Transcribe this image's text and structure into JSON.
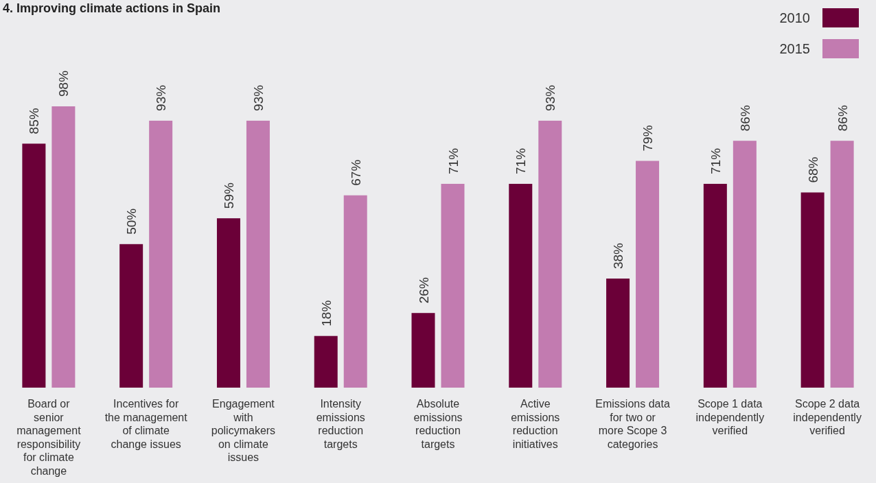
{
  "chart_data": {
    "type": "bar",
    "title": "4. Improving climate actions in Spain",
    "categories": [
      "Board or senior management responsibility for climate change",
      "Incentives for the management of climate change issues",
      "Engagement with policymakers on climate issues",
      "Intensity emissions reduction targets",
      "Absolute emissions reduction targets",
      "Active emissions reduction initiatives",
      "Emissions data for two or more Scope 3 categories",
      "Scope 1 data independently verified",
      "Scope 2 data independently verified"
    ],
    "series": [
      {
        "name": "2010",
        "color": "#6b0038",
        "values": [
          85,
          50,
          59,
          18,
          26,
          71,
          38,
          71,
          68
        ],
        "value_labels": [
          "85%",
          "50%",
          "59%",
          "18%",
          "26%",
          "71%",
          "38%",
          "71%",
          "68%"
        ]
      },
      {
        "name": "2015",
        "color": "#c27bb0",
        "values": [
          98,
          93,
          93,
          67,
          71,
          93,
          79,
          86,
          86
        ],
        "value_labels": [
          "98%",
          "93%",
          "93%",
          "67%",
          "71%",
          "93%",
          "79%",
          "86%",
          "86%"
        ]
      }
    ],
    "legend": "top right"
  }
}
